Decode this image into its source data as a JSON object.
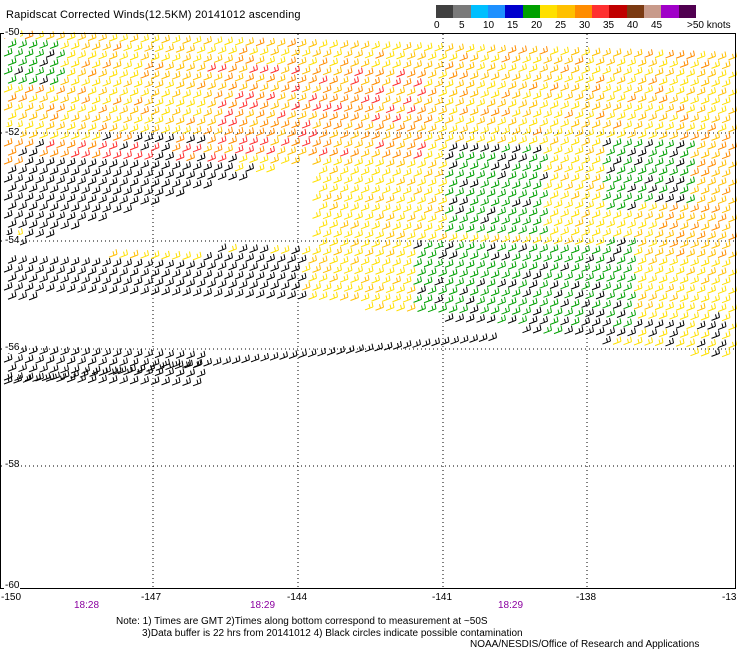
{
  "title": "Rapidscat Corrected Winds(12.5KM) 20141012 ascending",
  "legend": {
    "colors": [
      "#404040",
      "#7a7a7a",
      "#00bfff",
      "#1e90ff",
      "#0000cd",
      "#00a000",
      "#ffe000",
      "#ffc000",
      "#ff8c00",
      "#ff3030",
      "#c00000",
      "#7b3a12",
      "#c89a8a",
      "#a000c8",
      "#500050"
    ],
    "labels": [
      "0",
      "5",
      "10",
      "15",
      "20",
      "25",
      "30",
      "35",
      "40",
      "45",
      ">50 knots"
    ]
  },
  "axes": {
    "lon_labels": [
      "-150",
      "-147",
      "-144",
      "-141",
      "-138",
      "-13"
    ],
    "lat_labels": [
      "-50",
      "-52",
      "-54",
      "-56",
      "-58",
      "-60"
    ]
  },
  "times": [
    "18:28",
    "18:29",
    "18:29"
  ],
  "notes": {
    "line1": "Note: 1) Times are GMT 2)Times along bottom correspond to measurement at ~50S",
    "line2": "3)Data buffer is 22 hrs from 20141012 4) Black circles indicate possible contamination",
    "line3": "NOAA/NESDIS/Office of Research and Applications"
  },
  "barb_colors": {
    "calm": "#000000",
    "light": "#00a000",
    "moderate": "#ffe000",
    "fresh": "#ffc000",
    "strong": "#ff8c00",
    "gale": "#ff3030",
    "storm": "#c00000"
  }
}
